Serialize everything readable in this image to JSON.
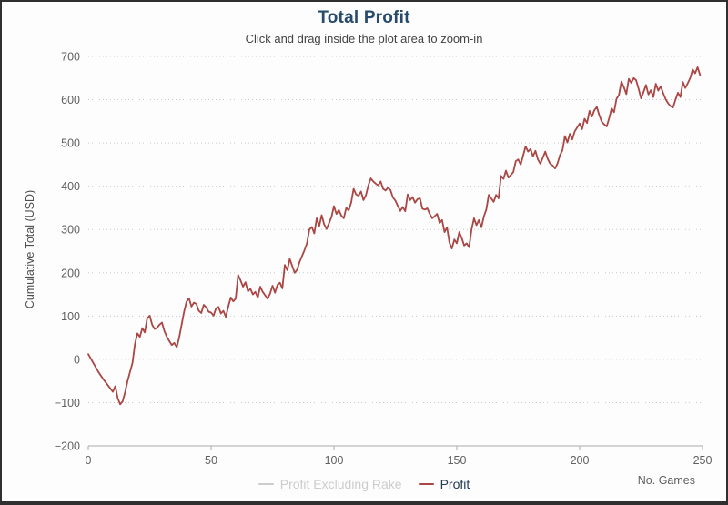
{
  "chart_data": {
    "type": "line",
    "title": "Total Profit",
    "subtitle": "Click and drag inside the plot area to zoom-in",
    "xlabel": "No. Games",
    "ylabel": "Cumulative Total (USD)",
    "xlim": [
      0,
      250
    ],
    "ylim": [
      -200,
      700
    ],
    "xticks": [
      0,
      50,
      100,
      150,
      200,
      250
    ],
    "xtick_labels": [
      "0",
      "50",
      "100",
      "150",
      "200",
      "250"
    ],
    "yticks": [
      -200,
      -100,
      0,
      100,
      200,
      300,
      400,
      500,
      600,
      700
    ],
    "ytick_labels": [
      "−200",
      "−100",
      "0",
      "100",
      "200",
      "300",
      "400",
      "500",
      "600",
      "700"
    ],
    "grid": "horizontal-dotted",
    "legend_position": "bottom-center",
    "series": [
      {
        "name": "Profit Excluding Rake",
        "color": "#4572A7",
        "visible": false,
        "points": []
      },
      {
        "name": "Profit",
        "color": "#AA4643",
        "visible": true,
        "points": [
          [
            0,
            12
          ],
          [
            2,
            -8
          ],
          [
            4,
            -28
          ],
          [
            6,
            -45
          ],
          [
            8,
            -60
          ],
          [
            10,
            -75
          ],
          [
            11,
            -62
          ],
          [
            12,
            -90
          ],
          [
            13,
            -104
          ],
          [
            14,
            -97
          ],
          [
            15,
            -76
          ],
          [
            16,
            -50
          ],
          [
            18,
            -8
          ],
          [
            19,
            35
          ],
          [
            20,
            60
          ],
          [
            21,
            52
          ],
          [
            22,
            72
          ],
          [
            23,
            62
          ],
          [
            24,
            95
          ],
          [
            25,
            101
          ],
          [
            26,
            80
          ],
          [
            27,
            70
          ],
          [
            28,
            73
          ],
          [
            29,
            80
          ],
          [
            30,
            85
          ],
          [
            31,
            65
          ],
          [
            32,
            52
          ],
          [
            33,
            42
          ],
          [
            34,
            33
          ],
          [
            35,
            38
          ],
          [
            36,
            28
          ],
          [
            37,
            50
          ],
          [
            38,
            80
          ],
          [
            39,
            110
          ],
          [
            40,
            133
          ],
          [
            41,
            141
          ],
          [
            42,
            122
          ],
          [
            43,
            131
          ],
          [
            44,
            128
          ],
          [
            45,
            112
          ],
          [
            46,
            107
          ],
          [
            47,
            126
          ],
          [
            48,
            120
          ],
          [
            49,
            110
          ],
          [
            50,
            108
          ],
          [
            51,
            101
          ],
          [
            52,
            118
          ],
          [
            53,
            121
          ],
          [
            54,
            106
          ],
          [
            55,
            112
          ],
          [
            56,
            98
          ],
          [
            57,
            122
          ],
          [
            58,
            143
          ],
          [
            59,
            134
          ],
          [
            60,
            140
          ],
          [
            61,
            195
          ],
          [
            62,
            182
          ],
          [
            63,
            168
          ],
          [
            64,
            178
          ],
          [
            65,
            157
          ],
          [
            66,
            163
          ],
          [
            67,
            150
          ],
          [
            68,
            156
          ],
          [
            69,
            143
          ],
          [
            70,
            168
          ],
          [
            71,
            156
          ],
          [
            72,
            148
          ],
          [
            73,
            140
          ],
          [
            74,
            152
          ],
          [
            75,
            170
          ],
          [
            76,
            154
          ],
          [
            77,
            172
          ],
          [
            78,
            177
          ],
          [
            79,
            164
          ],
          [
            80,
            218
          ],
          [
            81,
            206
          ],
          [
            82,
            232
          ],
          [
            83,
            216
          ],
          [
            84,
            200
          ],
          [
            85,
            207
          ],
          [
            86,
            225
          ],
          [
            88,
            252
          ],
          [
            89,
            268
          ],
          [
            90,
            300
          ],
          [
            91,
            306
          ],
          [
            92,
            291
          ],
          [
            93,
            326
          ],
          [
            94,
            308
          ],
          [
            95,
            333
          ],
          [
            96,
            312
          ],
          [
            97,
            301
          ],
          [
            98,
            315
          ],
          [
            99,
            329
          ],
          [
            100,
            354
          ],
          [
            101,
            336
          ],
          [
            102,
            345
          ],
          [
            103,
            332
          ],
          [
            104,
            326
          ],
          [
            105,
            350
          ],
          [
            106,
            344
          ],
          [
            107,
            362
          ],
          [
            108,
            394
          ],
          [
            109,
            381
          ],
          [
            110,
            378
          ],
          [
            111,
            388
          ],
          [
            112,
            368
          ],
          [
            113,
            379
          ],
          [
            114,
            402
          ],
          [
            115,
            418
          ],
          [
            116,
            411
          ],
          [
            117,
            406
          ],
          [
            118,
            402
          ],
          [
            119,
            411
          ],
          [
            120,
            394
          ],
          [
            121,
            390
          ],
          [
            122,
            397
          ],
          [
            123,
            391
          ],
          [
            124,
            374
          ],
          [
            125,
            367
          ],
          [
            126,
            354
          ],
          [
            127,
            343
          ],
          [
            128,
            352
          ],
          [
            129,
            342
          ],
          [
            130,
            381
          ],
          [
            131,
            368
          ],
          [
            132,
            375
          ],
          [
            133,
            362
          ],
          [
            134,
            370
          ],
          [
            135,
            372
          ],
          [
            136,
            348
          ],
          [
            137,
            346
          ],
          [
            138,
            349
          ],
          [
            139,
            336
          ],
          [
            140,
            326
          ],
          [
            141,
            331
          ],
          [
            142,
            336
          ],
          [
            143,
            315
          ],
          [
            144,
            322
          ],
          [
            145,
            294
          ],
          [
            146,
            305
          ],
          [
            147,
            270
          ],
          [
            148,
            256
          ],
          [
            149,
            277
          ],
          [
            150,
            268
          ],
          [
            151,
            294
          ],
          [
            152,
            280
          ],
          [
            153,
            263
          ],
          [
            154,
            268
          ],
          [
            155,
            259
          ],
          [
            156,
            300
          ],
          [
            157,
            326
          ],
          [
            158,
            310
          ],
          [
            159,
            322
          ],
          [
            160,
            305
          ],
          [
            161,
            330
          ],
          [
            162,
            346
          ],
          [
            163,
            380
          ],
          [
            164,
            372
          ],
          [
            165,
            364
          ],
          [
            166,
            380
          ],
          [
            167,
            372
          ],
          [
            168,
            424
          ],
          [
            169,
            417
          ],
          [
            170,
            436
          ],
          [
            171,
            420
          ],
          [
            172,
            426
          ],
          [
            173,
            433
          ],
          [
            174,
            458
          ],
          [
            175,
            462
          ],
          [
            176,
            450
          ],
          [
            177,
            471
          ],
          [
            178,
            492
          ],
          [
            179,
            480
          ],
          [
            180,
            486
          ],
          [
            181,
            469
          ],
          [
            182,
            482
          ],
          [
            183,
            462
          ],
          [
            184,
            452
          ],
          [
            185,
            466
          ],
          [
            186,
            480
          ],
          [
            187,
            463
          ],
          [
            188,
            452
          ],
          [
            189,
            448
          ],
          [
            190,
            441
          ],
          [
            191,
            453
          ],
          [
            192,
            472
          ],
          [
            193,
            483
          ],
          [
            194,
            516
          ],
          [
            195,
            501
          ],
          [
            196,
            521
          ],
          [
            197,
            508
          ],
          [
            198,
            527
          ],
          [
            199,
            536
          ],
          [
            200,
            545
          ],
          [
            201,
            532
          ],
          [
            202,
            556
          ],
          [
            203,
            546
          ],
          [
            204,
            574
          ],
          [
            205,
            561
          ],
          [
            206,
            576
          ],
          [
            207,
            583
          ],
          [
            208,
            564
          ],
          [
            209,
            549
          ],
          [
            210,
            543
          ],
          [
            211,
            538
          ],
          [
            212,
            557
          ],
          [
            213,
            580
          ],
          [
            214,
            571
          ],
          [
            215,
            602
          ],
          [
            216,
            611
          ],
          [
            217,
            642
          ],
          [
            218,
            629
          ],
          [
            219,
            613
          ],
          [
            220,
            648
          ],
          [
            221,
            639
          ],
          [
            222,
            650
          ],
          [
            223,
            645
          ],
          [
            224,
            625
          ],
          [
            225,
            603
          ],
          [
            226,
            618
          ],
          [
            227,
            634
          ],
          [
            228,
            612
          ],
          [
            229,
            622
          ],
          [
            230,
            606
          ],
          [
            231,
            637
          ],
          [
            232,
            621
          ],
          [
            233,
            631
          ],
          [
            234,
            615
          ],
          [
            235,
            601
          ],
          [
            236,
            592
          ],
          [
            237,
            585
          ],
          [
            238,
            582
          ],
          [
            239,
            600
          ],
          [
            240,
            616
          ],
          [
            241,
            606
          ],
          [
            242,
            641
          ],
          [
            243,
            627
          ],
          [
            244,
            638
          ],
          [
            245,
            650
          ],
          [
            246,
            670
          ],
          [
            247,
            661
          ],
          [
            248,
            675
          ],
          [
            249,
            657
          ]
        ]
      }
    ]
  },
  "styles": {
    "title_color": "#274B6D",
    "subtitle_color": "#434343",
    "axis_label_color": "#606060",
    "axis_title_color": "#4D4D4D",
    "grid_color": "#C8C8C8",
    "axis_line_color": "#ACACAC",
    "series_line_color": "#AA4643",
    "legend_label_color": "#233A54",
    "legend_hidden_color": "#CCCCCC",
    "frame_border_color": "#2F2F2F",
    "background_color": "#FDFDFD"
  }
}
